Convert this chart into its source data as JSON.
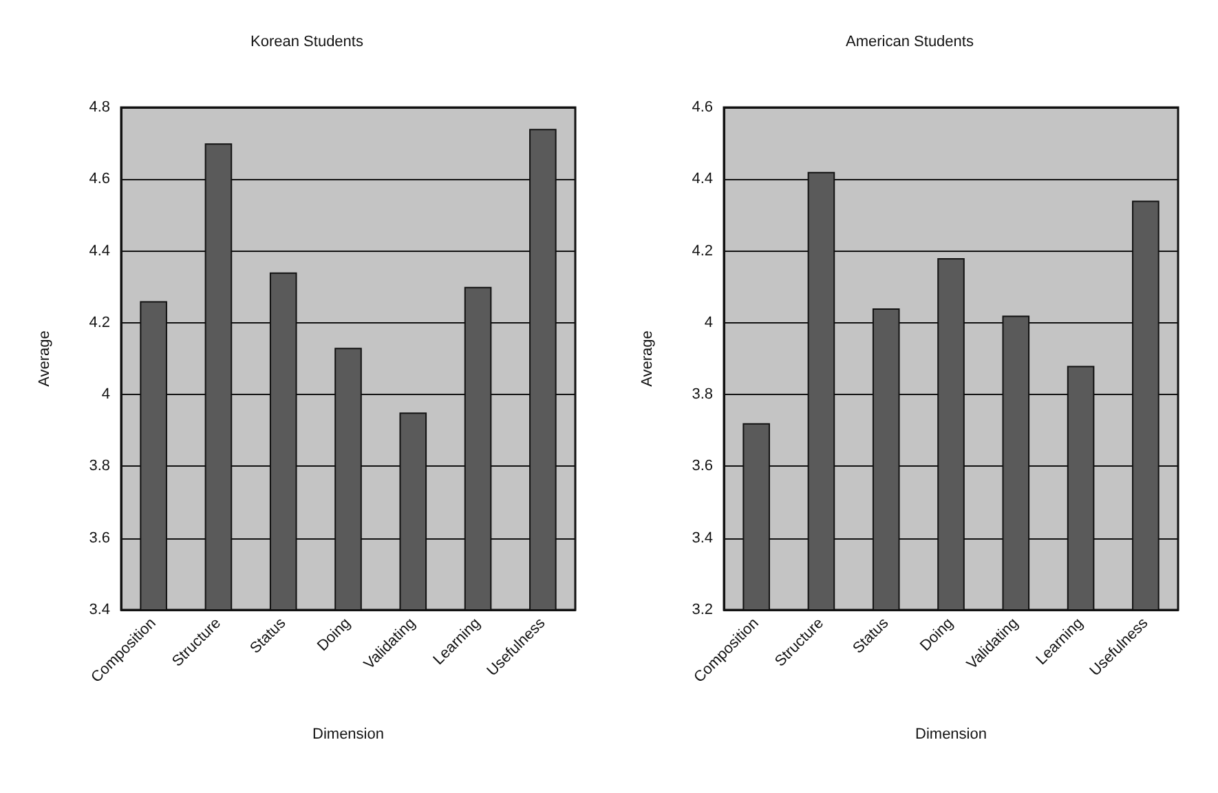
{
  "chart_data": [
    {
      "type": "bar",
      "title": "Korean Students",
      "xlabel": "Dimension",
      "ylabel": "Average",
      "categories": [
        "Composition",
        "Structure",
        "Status",
        "Doing",
        "Validating",
        "Learning",
        "Usefulness"
      ],
      "values": [
        4.26,
        4.7,
        4.34,
        4.13,
        3.95,
        4.3,
        4.74
      ],
      "color": "#5a5a5a",
      "ylim": [
        3.4,
        4.8
      ],
      "yticks": [
        3.4,
        3.6,
        3.8,
        4,
        4.2,
        4.4,
        4.6,
        4.8
      ],
      "grid": "y"
    },
    {
      "type": "bar",
      "title": "American Students",
      "xlabel": "Dimension",
      "ylabel": "Average",
      "categories": [
        "Composition",
        "Structure",
        "Status",
        "Doing",
        "Validating",
        "Learning",
        "Usefulness"
      ],
      "values": [
        3.72,
        4.42,
        4.04,
        4.18,
        4.02,
        3.88,
        4.34
      ],
      "color": "#5a5a5a",
      "ylim": [
        3.2,
        4.6
      ],
      "yticks": [
        3.2,
        3.4,
        3.6,
        3.8,
        4,
        4.2,
        4.4,
        4.6
      ],
      "grid": "y"
    }
  ]
}
